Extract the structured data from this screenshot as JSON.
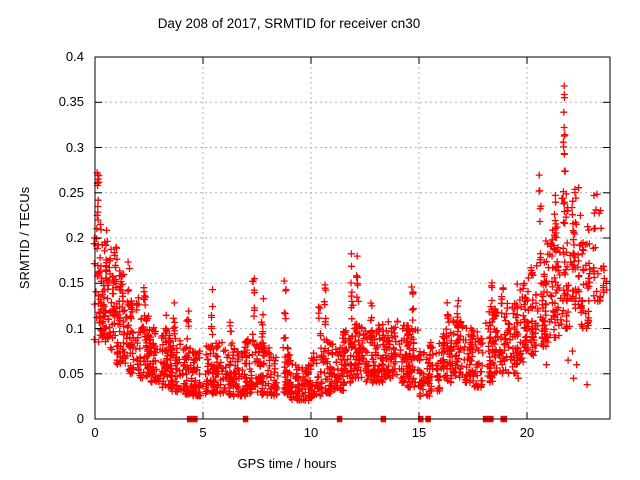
{
  "figure": {
    "background": "#ffffff",
    "border_color": "#000000",
    "grid_color": "#b0b0b0",
    "text_color": "#000000"
  },
  "chart_data": {
    "type": "scatter",
    "title": "Day 208 of 2017, SRMTID for receiver cn30",
    "xlabel": "GPS time / hours",
    "ylabel": "SRMTID / TECUs",
    "xlim": [
      0,
      23.84
    ],
    "ylim": [
      0,
      0.4
    ],
    "xticks": [
      0,
      5,
      10,
      15,
      20
    ],
    "xtick_labels": [
      "0",
      "5",
      "10",
      "15",
      "20"
    ],
    "yticks": [
      0,
      0.05,
      0.1,
      0.15,
      0.2,
      0.25,
      0.3,
      0.35,
      0.4
    ],
    "ytick_labels": [
      "0",
      "0.05",
      "0.1",
      "0.15",
      "0.2",
      "0.25",
      "0.3",
      "0.35",
      "0.4"
    ],
    "grid": true,
    "legend": "none",
    "marker": {
      "shape": "plus",
      "color": "#ff0000",
      "size": 7
    },
    "render_seed": 20170728,
    "scatter_bins": [
      [
        0.0,
        0.3,
        0.085,
        0.22,
        40
      ],
      [
        0.3,
        0.6,
        0.085,
        0.21,
        38
      ],
      [
        0.6,
        1.0,
        0.075,
        0.19,
        52
      ],
      [
        1.0,
        1.5,
        0.06,
        0.165,
        58
      ],
      [
        1.5,
        2.0,
        0.05,
        0.135,
        54
      ],
      [
        2.0,
        2.5,
        0.045,
        0.115,
        52
      ],
      [
        2.5,
        3.0,
        0.04,
        0.105,
        52
      ],
      [
        3.0,
        3.5,
        0.035,
        0.095,
        50
      ],
      [
        3.5,
        4.0,
        0.03,
        0.09,
        50
      ],
      [
        4.0,
        4.5,
        0.027,
        0.08,
        46
      ],
      [
        4.5,
        5.0,
        0.025,
        0.075,
        46
      ],
      [
        5.0,
        5.5,
        0.028,
        0.082,
        46
      ],
      [
        5.5,
        6.0,
        0.028,
        0.085,
        46
      ],
      [
        6.0,
        6.5,
        0.025,
        0.08,
        46
      ],
      [
        6.5,
        7.0,
        0.025,
        0.08,
        44
      ],
      [
        7.0,
        7.5,
        0.028,
        0.09,
        46
      ],
      [
        7.5,
        8.0,
        0.026,
        0.085,
        46
      ],
      [
        8.0,
        8.5,
        0.025,
        0.08,
        44
      ],
      [
        8.5,
        9.0,
        0.025,
        0.08,
        44
      ],
      [
        9.0,
        9.5,
        0.02,
        0.065,
        40
      ],
      [
        9.5,
        10.0,
        0.02,
        0.06,
        40
      ],
      [
        10.0,
        10.5,
        0.024,
        0.08,
        44
      ],
      [
        10.5,
        11.0,
        0.028,
        0.09,
        46
      ],
      [
        11.0,
        11.5,
        0.03,
        0.08,
        42
      ],
      [
        11.5,
        12.0,
        0.04,
        0.1,
        50
      ],
      [
        12.0,
        12.5,
        0.045,
        0.105,
        52
      ],
      [
        12.5,
        13.0,
        0.04,
        0.1,
        50
      ],
      [
        13.0,
        13.5,
        0.04,
        0.105,
        50
      ],
      [
        13.5,
        14.0,
        0.045,
        0.11,
        52
      ],
      [
        14.0,
        14.5,
        0.04,
        0.105,
        50
      ],
      [
        14.5,
        15.0,
        0.035,
        0.1,
        48
      ],
      [
        15.0,
        15.5,
        0.025,
        0.075,
        40
      ],
      [
        15.5,
        16.0,
        0.03,
        0.085,
        44
      ],
      [
        16.0,
        16.5,
        0.04,
        0.1,
        48
      ],
      [
        16.5,
        17.0,
        0.045,
        0.11,
        50
      ],
      [
        17.0,
        17.5,
        0.04,
        0.105,
        46
      ],
      [
        17.5,
        18.0,
        0.035,
        0.1,
        40
      ],
      [
        18.0,
        18.5,
        0.04,
        0.12,
        44
      ],
      [
        18.5,
        19.0,
        0.05,
        0.13,
        46
      ],
      [
        19.0,
        19.5,
        0.05,
        0.13,
        46
      ],
      [
        19.5,
        20.0,
        0.06,
        0.15,
        50
      ],
      [
        20.0,
        20.5,
        0.07,
        0.17,
        52
      ],
      [
        20.5,
        21.0,
        0.08,
        0.2,
        52
      ],
      [
        21.0,
        21.5,
        0.09,
        0.22,
        52
      ],
      [
        21.5,
        22.0,
        0.1,
        0.25,
        50
      ],
      [
        22.0,
        22.5,
        0.11,
        0.26,
        46
      ],
      [
        22.5,
        23.0,
        0.1,
        0.22,
        42
      ],
      [
        23.0,
        23.4,
        0.13,
        0.25,
        26
      ],
      [
        23.4,
        23.7,
        0.14,
        0.17,
        10
      ]
    ],
    "spikes": [
      [
        0.13,
        0.2,
        0.272,
        8
      ],
      [
        0.55,
        0.14,
        0.21,
        6
      ],
      [
        1.25,
        0.12,
        0.165,
        7
      ],
      [
        1.55,
        0.11,
        0.175,
        6
      ],
      [
        2.3,
        0.1,
        0.152,
        7
      ],
      [
        3.3,
        0.08,
        0.115,
        6
      ],
      [
        3.65,
        0.09,
        0.13,
        7
      ],
      [
        4.3,
        0.08,
        0.122,
        6
      ],
      [
        5.4,
        0.08,
        0.145,
        8
      ],
      [
        6.3,
        0.08,
        0.112,
        6
      ],
      [
        7.35,
        0.09,
        0.167,
        9
      ],
      [
        7.75,
        0.085,
        0.14,
        7
      ],
      [
        8.8,
        0.08,
        0.155,
        8
      ],
      [
        10.4,
        0.08,
        0.125,
        6
      ],
      [
        10.65,
        0.09,
        0.155,
        8
      ],
      [
        11.9,
        0.1,
        0.19,
        9
      ],
      [
        12.15,
        0.1,
        0.185,
        8
      ],
      [
        12.8,
        0.09,
        0.13,
        6
      ],
      [
        14.7,
        0.1,
        0.147,
        7
      ],
      [
        16.35,
        0.1,
        0.132,
        6
      ],
      [
        16.8,
        0.1,
        0.147,
        7
      ],
      [
        18.35,
        0.12,
        0.152,
        6
      ],
      [
        18.85,
        0.12,
        0.157,
        6
      ],
      [
        20.6,
        0.17,
        0.285,
        9
      ],
      [
        21.3,
        0.2,
        0.262,
        8
      ],
      [
        21.72,
        0.25,
        0.37,
        10
      ]
    ],
    "outliers": [
      [
        0.1,
        0.272
      ],
      [
        0.15,
        0.265
      ],
      [
        0.12,
        0.258
      ],
      [
        21.72,
        0.368
      ],
      [
        21.73,
        0.355
      ],
      [
        21.7,
        0.339
      ],
      [
        21.75,
        0.314
      ],
      [
        22.78,
        0.038
      ],
      [
        21.9,
        0.065
      ],
      [
        22.1,
        0.075
      ],
      [
        22.3,
        0.06
      ],
      [
        22.15,
        0.045
      ],
      [
        20.9,
        0.06
      ],
      [
        19.6,
        0.045
      ]
    ],
    "zero_value_clusters": [
      [
        4.38,
        0.2
      ],
      [
        4.62,
        0.2
      ],
      [
        6.97,
        0.25
      ],
      [
        11.32,
        0.2
      ],
      [
        13.35,
        0.2
      ],
      [
        15.08,
        0.18
      ],
      [
        15.42,
        0.18
      ],
      [
        18.2,
        0.5
      ],
      [
        18.92,
        0.3
      ]
    ]
  }
}
